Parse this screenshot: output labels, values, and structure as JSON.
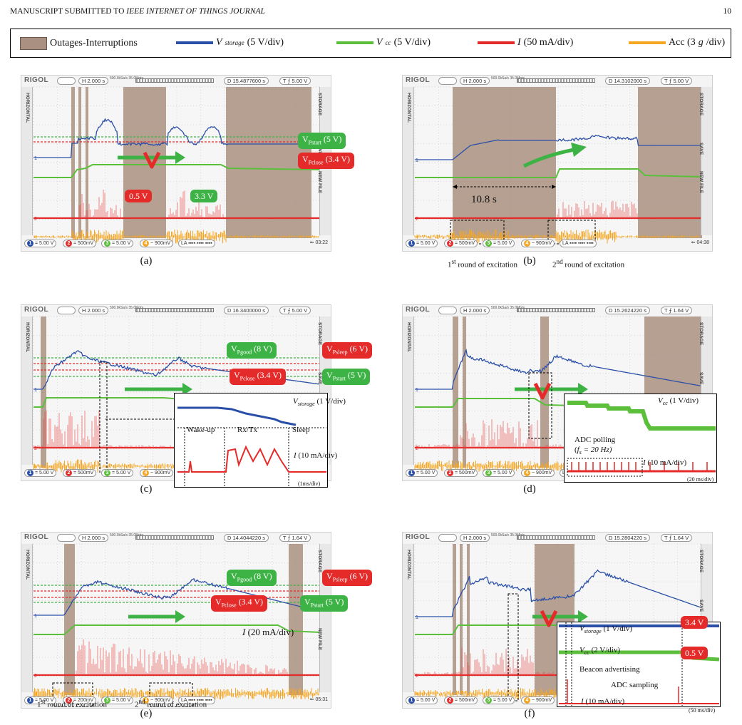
{
  "header": {
    "title": "MANUSCRIPT SUBMITTED TO ",
    "journal": "IEEE INTERNET OF THINGS JOURNAL",
    "page": "10"
  },
  "legend": {
    "outage": "Outages-Interruptions",
    "vstorage_sym": "V",
    "vstorage_sub": "storage",
    "vstorage_scale": " (5 V/div)",
    "vcc_sym": "V",
    "vcc_sub": "cc",
    "vcc_scale": " (5 V/div)",
    "i_sym": "I",
    "i_scale": " (50 mA/div)",
    "acc": "Acc (3 ",
    "acc_g": "g",
    "acc_tail": "/div)",
    "colors": {
      "outage": "#a99080",
      "vstorage": "#2a4fa8",
      "vcc": "#5cbf3c",
      "i": "#e52a2a",
      "acc": "#f5a623"
    }
  },
  "scope": {
    "brand": "RIGOL",
    "timebase": "2.000 s",
    "rate": "500.0kSa/s 35.0Mpts",
    "hpos": {
      "a": "15.4877600 s",
      "b": "14.3102000 s",
      "c": "16.3400000 s",
      "d": "15.2624220 s",
      "e": "14.4044220 s",
      "f": "15.2804220 s"
    },
    "trig": {
      "a": "5.00 V",
      "b": "5.00 V",
      "c": "5.00 V",
      "d": "1.64 V",
      "e": "1.64 V",
      "f": "1.64 V"
    },
    "side_a": "STORAGE",
    "side_b": "SAVE",
    "side_c": "NEW FILE",
    "horiz": "HORIZONTAL",
    "ch1": "5.00 V",
    "ch2a": "500mV",
    "ch2e": "200mV",
    "ch3": "5.00 V",
    "ch4": "900mV",
    "time": {
      "a": "03:22",
      "b": "04:38",
      "e": "05:31"
    }
  },
  "captions": {
    "a": "(a)",
    "b": "(b)",
    "c": "(c)",
    "d": "(d)",
    "e": "(e)",
    "f": "(f)"
  },
  "labels": {
    "vpstart": "V",
    "pstart": "Pstart",
    "v5": "(5 V)",
    "vpclose": "V",
    "pclose": "Pclose",
    "v34": "(3.4 V)",
    "vpgood": "V",
    "pgood": "Pgood",
    "v8": "(8 V)",
    "vpsleep": "V",
    "psleep": "Psleep",
    "v6": "(6 V)",
    "v05": "0.5 V",
    "v33": "3.3 V",
    "v34b": "3.4 V",
    "t108": "10.8 s",
    "round1": "1",
    "round1_sup": "st",
    "round1_txt": " round of excitation",
    "round2": "2",
    "round2_sup": "nd",
    "round2_txt": " round of excitation",
    "c_vstor": "V",
    "c_vstor_sub": "storage",
    "c_vstor_scale": " (1 V/div)",
    "wake": "Wake-up",
    "rxtx": "Rx/Tx",
    "sleep": "Sleep",
    "c_i": "I",
    "c_i_scale": " (10 mA/div)",
    "c_ms": "(1ms/div)",
    "d_vcc": "V",
    "d_vcc_sub": "cc",
    "d_vcc_scale": " (1 V/div)",
    "d_adc": "ADC polling",
    "d_fs": "(f",
    "d_fs_sub": "s",
    "d_fs_tail": " = 20 Hz)",
    "d_i": "I",
    "d_i_scale": " (10 mA/div)",
    "d_ms": "(20 ms/div)",
    "e_i": "I",
    "e_i_scale": " (20 mA/div)",
    "f_vstor": "V",
    "f_vstor_sub": "storage",
    "f_vstor_scale": " (1 V/div)",
    "f_vcc": "V",
    "f_vcc_sub": "cc",
    "f_vcc_scale": " (2 V/div)",
    "f_beacon": "Beacon advertising",
    "f_adc": "ADC sampling",
    "f_i": "I",
    "f_i_scale": " (10 mA/div)",
    "f_ms": "(50 ms/div)"
  }
}
